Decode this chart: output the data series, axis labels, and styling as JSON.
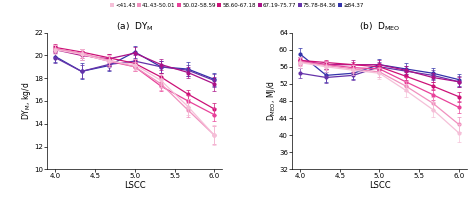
{
  "legend_labels": [
    "<41.43",
    "41.43-50.01",
    "50.02-58.59",
    "58.60-67.18",
    "67.19-75.77",
    "75.78-84.36",
    "≥84.37"
  ],
  "legend_colors": [
    "#f5c0d8",
    "#f090be",
    "#e8429a",
    "#cc1177",
    "#aa1188",
    "#6633aa",
    "#3333aa"
  ],
  "x": [
    4.0,
    4.33,
    4.67,
    5.0,
    5.33,
    5.67,
    6.0
  ],
  "panel_a": {
    "title": "(a)  DY$_\\mathrm{M}$",
    "ylabel": "DY$_\\mathrm{M}$, kg/d",
    "xlabel": "LSCC",
    "ylim": [
      10,
      22
    ],
    "yticks": [
      10,
      12,
      14,
      16,
      18,
      20,
      22
    ],
    "series": [
      {
        "y": [
          20.5,
          20.1,
          19.5,
          19.2,
          17.8,
          15.5,
          13.0
        ],
        "yerr": [
          0.4,
          0.5,
          0.5,
          0.5,
          0.6,
          0.7,
          0.9
        ]
      },
      {
        "y": [
          20.6,
          20.2,
          19.6,
          19.0,
          17.5,
          15.2,
          13.0
        ],
        "yerr": [
          0.3,
          0.4,
          0.4,
          0.4,
          0.5,
          0.6,
          0.8
        ]
      },
      {
        "y": [
          20.6,
          20.1,
          19.5,
          19.0,
          17.3,
          16.0,
          14.8
        ],
        "yerr": [
          0.3,
          0.3,
          0.4,
          0.4,
          0.4,
          0.5,
          0.6
        ]
      },
      {
        "y": [
          20.7,
          20.3,
          19.8,
          19.3,
          18.1,
          16.6,
          15.3
        ],
        "yerr": [
          0.3,
          0.3,
          0.3,
          0.3,
          0.4,
          0.4,
          0.5
        ]
      },
      {
        "y": [
          20.5,
          20.0,
          19.7,
          20.2,
          19.2,
          18.5,
          17.5
        ],
        "yerr": [
          0.3,
          0.4,
          0.4,
          0.5,
          0.5,
          0.5,
          0.6
        ]
      },
      {
        "y": [
          19.8,
          18.6,
          19.2,
          19.5,
          19.0,
          18.7,
          17.8
        ],
        "yerr": [
          0.5,
          0.6,
          0.5,
          0.5,
          0.5,
          0.5,
          0.6
        ]
      },
      {
        "y": [
          19.9,
          18.6,
          19.1,
          20.3,
          19.0,
          18.8,
          17.9
        ],
        "yerr": [
          0.5,
          0.7,
          0.5,
          0.5,
          0.5,
          0.6,
          0.6
        ]
      }
    ]
  },
  "panel_b": {
    "title": "(b)  D$_\\mathrm{MEO}$",
    "ylabel": "D$_\\mathrm{MEO}$, MJ/d",
    "xlabel": "LSCC",
    "ylim": [
      32,
      64
    ],
    "yticks": [
      32,
      36,
      40,
      44,
      48,
      52,
      56,
      60,
      64
    ],
    "series": [
      {
        "y": [
          57.0,
          56.0,
          55.2,
          54.5,
          50.5,
          46.0,
          40.5
        ],
        "yerr": [
          1.2,
          1.2,
          1.2,
          1.3,
          1.5,
          1.8,
          2.2
        ]
      },
      {
        "y": [
          57.2,
          56.3,
          55.5,
          54.8,
          51.5,
          47.5,
          42.5
        ],
        "yerr": [
          1.0,
          1.0,
          1.0,
          1.1,
          1.2,
          1.5,
          1.8
        ]
      },
      {
        "y": [
          57.3,
          56.5,
          55.8,
          55.5,
          52.5,
          49.5,
          46.5
        ],
        "yerr": [
          0.8,
          0.9,
          0.9,
          1.0,
          1.0,
          1.2,
          1.4
        ]
      },
      {
        "y": [
          57.5,
          57.0,
          56.5,
          56.0,
          53.8,
          51.5,
          49.0
        ],
        "yerr": [
          0.7,
          0.7,
          0.7,
          0.8,
          0.9,
          1.0,
          1.2
        ]
      },
      {
        "y": [
          57.5,
          56.5,
          56.5,
          56.5,
          55.2,
          53.5,
          52.5
        ],
        "yerr": [
          0.8,
          0.9,
          1.0,
          1.0,
          1.0,
          1.0,
          1.2
        ]
      },
      {
        "y": [
          54.5,
          53.5,
          54.0,
          56.0,
          55.0,
          54.0,
          52.5
        ],
        "yerr": [
          1.2,
          1.2,
          1.2,
          1.2,
          1.2,
          1.2,
          1.3
        ]
      },
      {
        "y": [
          59.0,
          54.0,
          54.5,
          56.5,
          55.5,
          54.5,
          53.0
        ],
        "yerr": [
          1.5,
          1.5,
          1.3,
          1.3,
          1.3,
          1.3,
          1.4
        ]
      }
    ]
  }
}
